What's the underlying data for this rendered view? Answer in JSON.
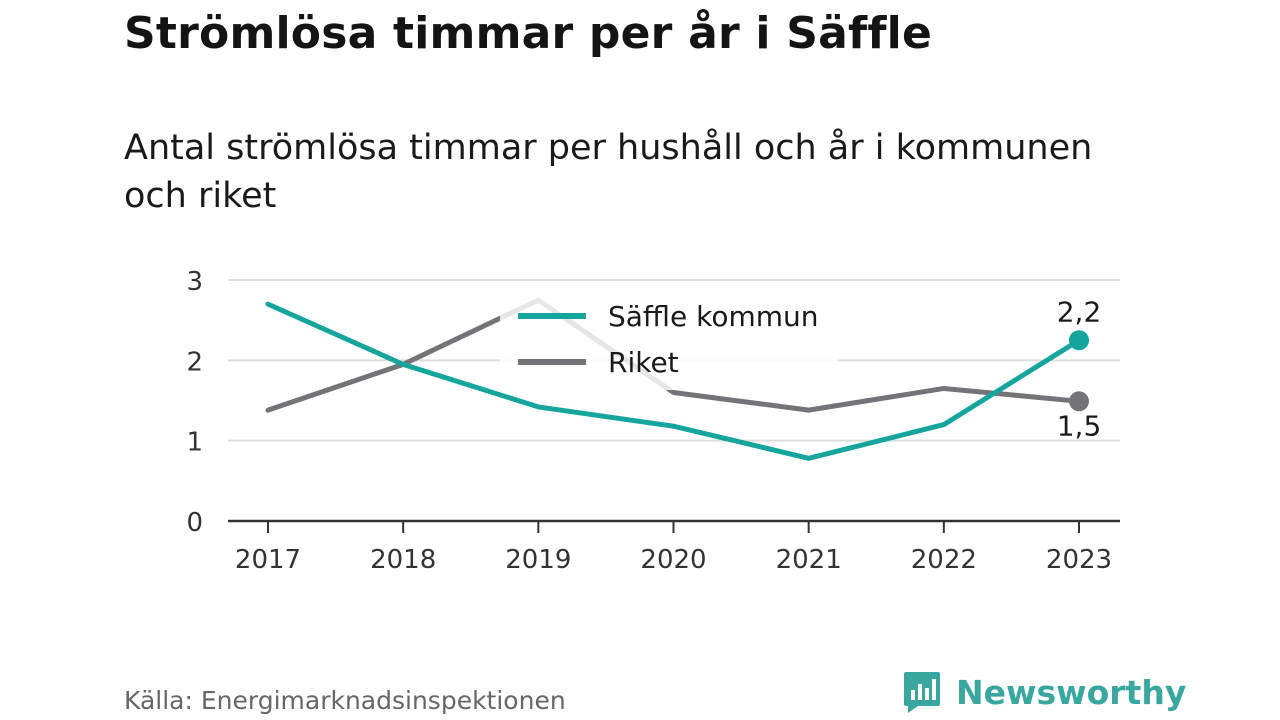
{
  "header": {
    "title": "Strömlösa timmar per år i Säffle",
    "subtitle": "Antal strömlösa timmar per hushåll och år i kommunen och riket"
  },
  "footer": {
    "source": "Källa: Energimarknadsinspektionen",
    "brand_name": "Newsworthy"
  },
  "colors": {
    "saffle": "#16a59c",
    "riket": "#747378",
    "grid": "#dddddd",
    "axis": "#333333",
    "brand": "#3aa79f"
  },
  "chart_data": {
    "type": "line",
    "x": [
      "2017",
      "2018",
      "2019",
      "2020",
      "2021",
      "2022",
      "2023"
    ],
    "yticks": [
      "0",
      "1",
      "2",
      "3"
    ],
    "ylim": [
      0,
      3
    ],
    "grid": true,
    "legend_position": "top-center",
    "series": [
      {
        "name": "Säffle kommun",
        "color": "#16a59c",
        "values": [
          2.7,
          1.95,
          1.42,
          1.18,
          0.78,
          1.2,
          2.25
        ],
        "end_label": "2,2"
      },
      {
        "name": "Riket",
        "color": "#747378",
        "values": [
          1.38,
          1.95,
          2.75,
          1.6,
          1.38,
          1.65,
          1.49
        ],
        "end_label": "1,5"
      }
    ]
  }
}
